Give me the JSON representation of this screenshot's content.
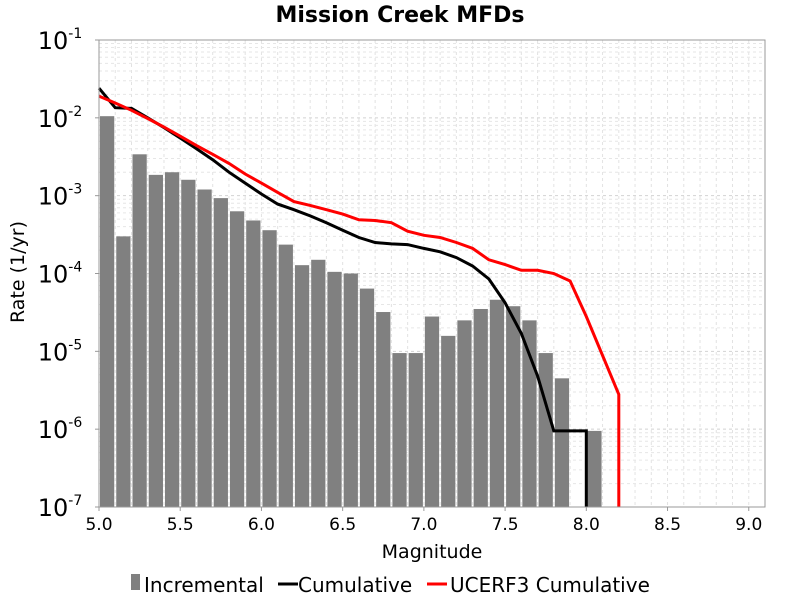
{
  "chart_data": {
    "type": "bar",
    "title": "Mission Creek MFDs",
    "xlabel": "Magnitude",
    "ylabel": "Rate (1/yr)",
    "xlim": [
      5.0,
      9.1
    ],
    "ylim": [
      1e-07,
      0.1
    ],
    "yscale": "log",
    "grid": true,
    "legend_position": "bottom",
    "x_ticks": [
      5.0,
      5.5,
      6.0,
      6.5,
      7.0,
      7.5,
      8.0,
      8.5,
      9.0
    ],
    "x_tick_labels": [
      "5.0",
      "5.5",
      "6.0",
      "6.5",
      "7.0",
      "7.5",
      "8.0",
      "8.5",
      "9.0"
    ],
    "y_ticks": [
      {
        "base": "10",
        "exp": "-1",
        "value": 0.1
      },
      {
        "base": "10",
        "exp": "-2",
        "value": 0.01
      },
      {
        "base": "10",
        "exp": "-3",
        "value": 0.001
      },
      {
        "base": "10",
        "exp": "-4",
        "value": 0.0001
      },
      {
        "base": "10",
        "exp": "-5",
        "value": 1e-05
      },
      {
        "base": "10",
        "exp": "-6",
        "value": 1e-06
      },
      {
        "base": "10",
        "exp": "-7",
        "value": 1e-07
      }
    ],
    "incremental": {
      "name": "Incremental",
      "color": "#808080",
      "x": [
        5.05,
        5.15,
        5.25,
        5.35,
        5.45,
        5.55,
        5.65,
        5.75,
        5.85,
        5.95,
        6.05,
        6.15,
        6.25,
        6.35,
        6.45,
        6.55,
        6.65,
        6.75,
        6.85,
        6.95,
        7.05,
        7.15,
        7.25,
        7.35,
        7.45,
        7.55,
        7.65,
        7.75,
        7.85,
        7.95,
        8.05
      ],
      "y": [
        0.0105,
        0.0003,
        0.0034,
        0.00185,
        0.002,
        0.0016,
        0.0012,
        0.00093,
        0.00063,
        0.00048,
        0.00036,
        0.000235,
        0.000128,
        0.00015,
        0.000105,
        0.0001,
        6.4e-05,
        3.2e-05,
        9.5e-06,
        9.5e-06,
        2.8e-05,
        1.58e-05,
        2.5e-05,
        3.5e-05,
        4.6e-05,
        3.8e-05,
        2.5e-05,
        9.5e-06,
        4.5e-06,
        0,
        9.5e-07
      ]
    },
    "series": [
      {
        "name": "Cumulative",
        "color": "#000000",
        "x": [
          5.0,
          5.1,
          5.2,
          5.3,
          5.4,
          5.5,
          5.6,
          5.7,
          5.8,
          5.9,
          6.0,
          6.1,
          6.2,
          6.3,
          6.4,
          6.5,
          6.6,
          6.7,
          6.8,
          6.9,
          7.0,
          7.1,
          7.2,
          7.3,
          7.4,
          7.5,
          7.6,
          7.7,
          7.8,
          7.9,
          8.0,
          8.0
        ],
        "y": [
          0.024,
          0.0135,
          0.0132,
          0.01,
          0.0075,
          0.0055,
          0.004,
          0.0029,
          0.002,
          0.00145,
          0.00105,
          0.00078,
          0.00066,
          0.00055,
          0.00045,
          0.00036,
          0.00029,
          0.00025,
          0.00024,
          0.000235,
          0.00021,
          0.00019,
          0.00016,
          0.000125,
          8.5e-05,
          4.2e-05,
          1.7e-05,
          4.8e-06,
          9.5e-07,
          9.5e-07,
          9.5e-07,
          1e-07
        ]
      },
      {
        "name": "UCERF3 Cumulative",
        "color": "#ff0000",
        "x": [
          5.0,
          5.1,
          5.2,
          5.3,
          5.4,
          5.5,
          5.6,
          5.7,
          5.8,
          5.9,
          6.0,
          6.1,
          6.2,
          6.3,
          6.4,
          6.5,
          6.6,
          6.7,
          6.8,
          6.9,
          7.0,
          7.1,
          7.2,
          7.3,
          7.4,
          7.5,
          7.6,
          7.7,
          7.8,
          7.9,
          8.0,
          8.2,
          8.2
        ],
        "y": [
          0.019,
          0.0155,
          0.0125,
          0.0098,
          0.0076,
          0.0058,
          0.0044,
          0.0034,
          0.0026,
          0.0019,
          0.00145,
          0.0011,
          0.00084,
          0.00075,
          0.00066,
          0.00058,
          0.00049,
          0.00048,
          0.00045,
          0.00035,
          0.00031,
          0.00029,
          0.00025,
          0.00021,
          0.00015,
          0.00013,
          0.00011,
          0.00011,
          0.0001,
          8e-05,
          2.8e-05,
          2.8e-06,
          1e-07
        ]
      }
    ]
  }
}
